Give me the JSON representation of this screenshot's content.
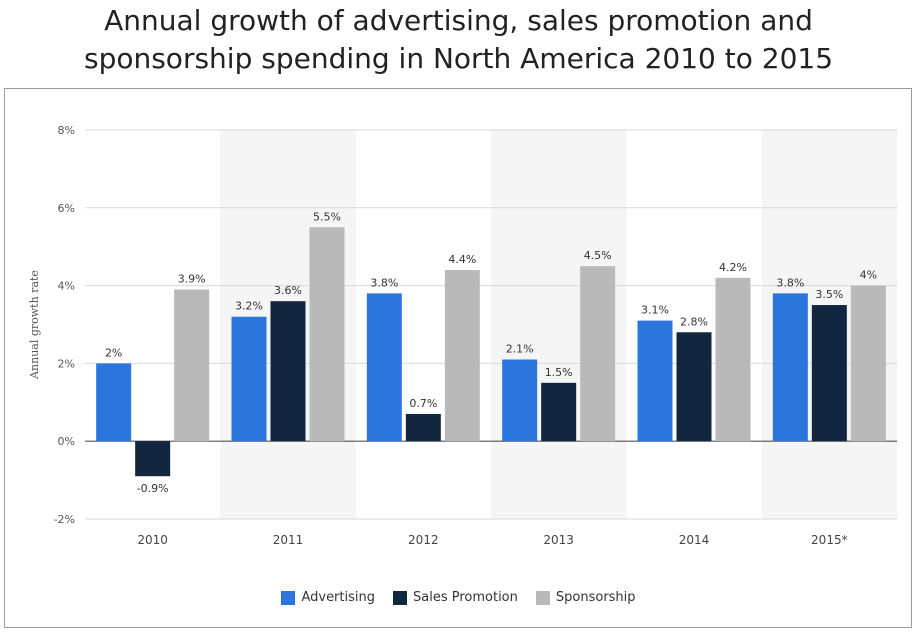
{
  "title_line1": "Annual growth of advertising, sales promotion and",
  "title_line2": "sponsorship spending in North America 2010 to 2015",
  "chart_data": {
    "type": "bar",
    "title": "Annual growth of advertising, sales promotion and sponsorship spending in North America 2010 to 2015",
    "ylabel": "Annual growth rate",
    "xlabel": "",
    "ylim": [
      -2,
      8
    ],
    "yticks": [
      -2,
      0,
      2,
      4,
      6,
      8
    ],
    "ytick_labels": [
      "-2%",
      "0%",
      "2%",
      "4%",
      "6%",
      "8%"
    ],
    "grid": true,
    "legend_position": "bottom",
    "categories": [
      "2010",
      "2011",
      "2012",
      "2013",
      "2014",
      "2015*"
    ],
    "series": [
      {
        "name": "Advertising",
        "color": "#2a76dd",
        "values": [
          2,
          3.2,
          3.8,
          2.1,
          3.1,
          3.8
        ],
        "labels": [
          "2%",
          "3.2%",
          "3.8%",
          "2.1%",
          "3.1%",
          "3.8%"
        ]
      },
      {
        "name": "Sales Promotion",
        "color": "#12263f",
        "values": [
          -0.9,
          3.6,
          0.7,
          1.5,
          2.8,
          3.5
        ],
        "labels": [
          "-0.9%",
          "3.6%",
          "0.7%",
          "1.5%",
          "2.8%",
          "3.5%"
        ]
      },
      {
        "name": "Sponsorship",
        "color": "#b9b9b9",
        "values": [
          3.9,
          5.5,
          4.4,
          4.5,
          4.2,
          4
        ],
        "labels": [
          "3.9%",
          "5.5%",
          "4.4%",
          "4.5%",
          "4.2%",
          "4%"
        ]
      }
    ]
  }
}
